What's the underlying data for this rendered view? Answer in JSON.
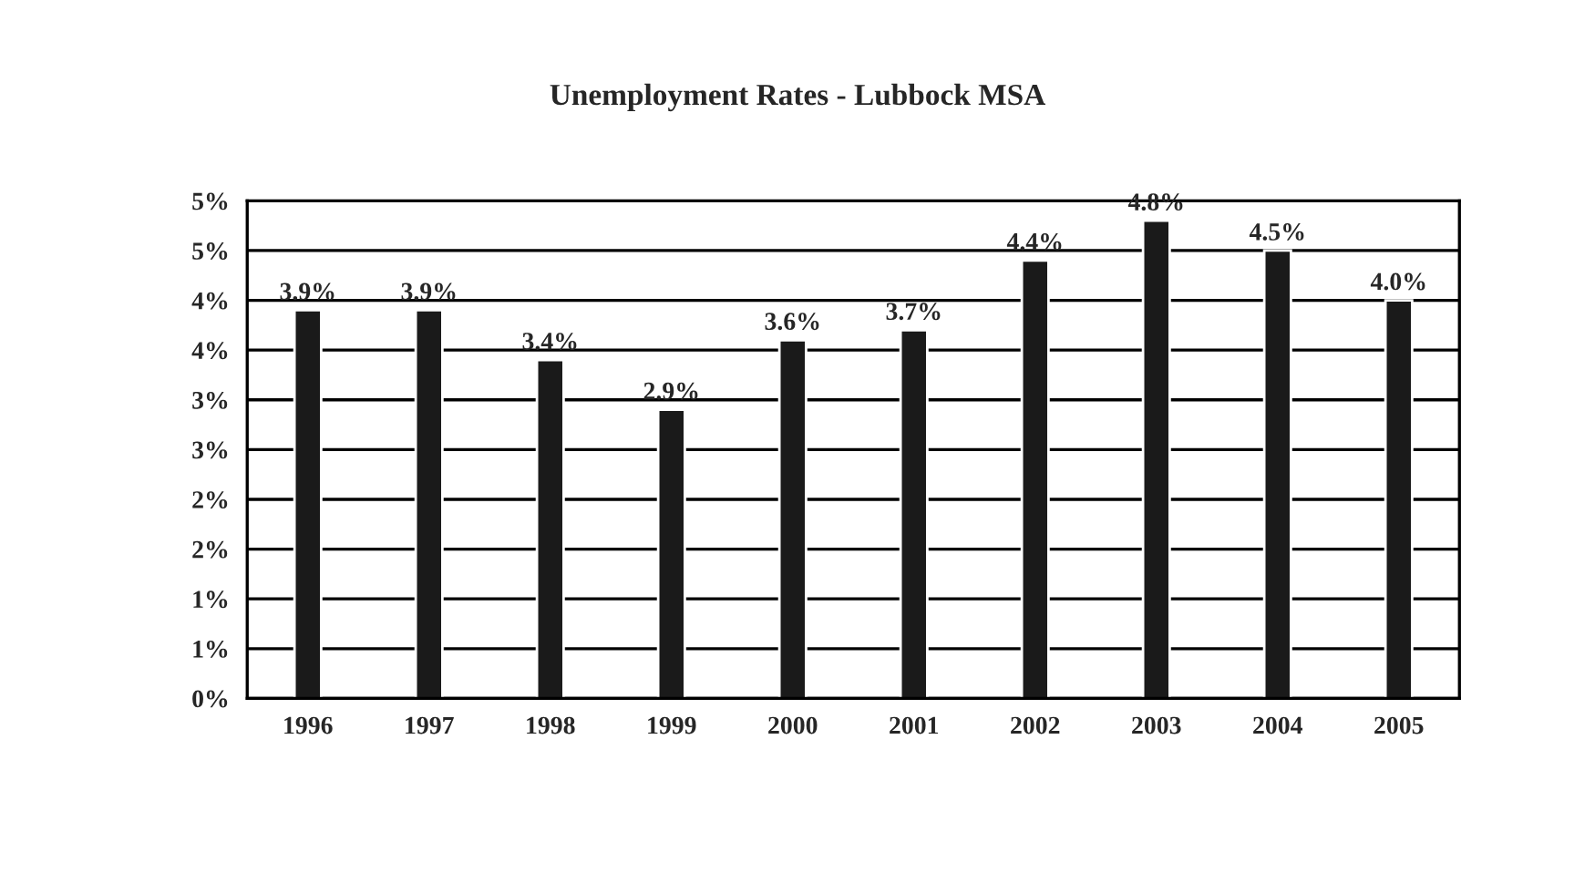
{
  "chart_data": {
    "type": "bar",
    "title": "Unemployment Rates - Lubbock MSA",
    "categories": [
      "1996",
      "1997",
      "1998",
      "1999",
      "2000",
      "2001",
      "2002",
      "2003",
      "2004",
      "2005"
    ],
    "values": [
      3.9,
      3.9,
      3.4,
      2.9,
      3.6,
      3.7,
      4.4,
      4.8,
      4.5,
      4.0
    ],
    "value_labels": [
      "3.9%",
      "3.9%",
      "3.4%",
      "2.9%",
      "3.6%",
      "3.7%",
      "4.4%",
      "4.8%",
      "4.5%",
      "4.0%"
    ],
    "color": "#1a1a1a",
    "ylim": [
      0,
      5
    ],
    "yticks": [
      {
        "value": 0,
        "label": "0%"
      },
      {
        "value": 0.5,
        "label": "1%"
      },
      {
        "value": 1,
        "label": "1%"
      },
      {
        "value": 1.5,
        "label": "2%"
      },
      {
        "value": 2,
        "label": "2%"
      },
      {
        "value": 2.5,
        "label": "3%"
      },
      {
        "value": 3,
        "label": "3%"
      },
      {
        "value": 3.5,
        "label": "4%"
      },
      {
        "value": 4,
        "label": "4%"
      },
      {
        "value": 4.5,
        "label": "5%"
      },
      {
        "value": 5,
        "label": "5%"
      }
    ],
    "grid": "y",
    "legend": false
  }
}
